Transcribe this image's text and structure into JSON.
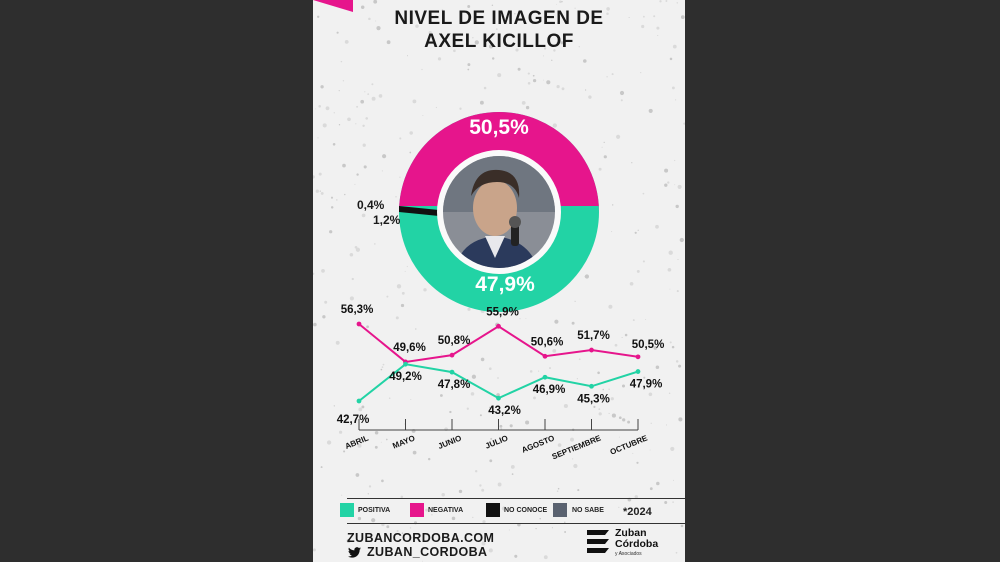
{
  "header": {
    "title_line1": "NIVEL DE IMAGEN DE",
    "title_line2": "AXEL KICILLOF"
  },
  "donut": {
    "negativa_label": "50,5%",
    "positiva_label": "47,9%",
    "no_conoce_label": "0,4%",
    "no_sabe_label": "1,2%"
  },
  "chart_data": {
    "type": "line",
    "title": "NIVEL DE IMAGEN DE AXEL KICILLOF",
    "categories": [
      "ABRIL",
      "MAYO",
      "JUNIO",
      "JULIO",
      "AGOSTO",
      "SEPTIEMBRE",
      "OCTUBRE"
    ],
    "series": [
      {
        "name": "NEGATIVA",
        "color": "#e6158c",
        "values": [
          56.3,
          49.6,
          50.8,
          55.9,
          50.6,
          51.7,
          50.5
        ],
        "labels": [
          "56,3%",
          "49,6%",
          "50,8%",
          "55,9%",
          "50,6%",
          "51,7%",
          "50,5%"
        ]
      },
      {
        "name": "POSITIVA",
        "color": "#22d3a5",
        "values": [
          42.7,
          49.2,
          47.8,
          43.2,
          46.9,
          45.3,
          47.9
        ],
        "labels": [
          "42,7%",
          "49,2%",
          "47,8%",
          "43,2%",
          "46,9%",
          "45,3%",
          "47,9%"
        ]
      }
    ],
    "pie": {
      "type": "pie",
      "slices": [
        {
          "name": "NEGATIVA",
          "value": 50.5,
          "color": "#e6158c"
        },
        {
          "name": "POSITIVA",
          "value": 47.9,
          "color": "#22d3a5"
        },
        {
          "name": "NO SABE",
          "value": 1.2,
          "color": "#5a6270"
        },
        {
          "name": "NO CONOCE",
          "value": 0.4,
          "color": "#111111"
        }
      ]
    },
    "ylim": [
      40,
      60
    ],
    "grid": false
  },
  "legend": {
    "items": [
      {
        "label": "POSITIVA",
        "color": "#22d3a5"
      },
      {
        "label": "NEGATIVA",
        "color": "#e6158c"
      },
      {
        "label": "NO CONOCE",
        "color": "#111111"
      },
      {
        "label": "NO SABE",
        "color": "#5a6270"
      }
    ],
    "year": "*2024"
  },
  "footer": {
    "website": "ZUBANCORDOBA.COM",
    "twitter": "ZUBAN_CORDOBA",
    "brand_line1": "Zuban",
    "brand_line2": "Córdoba",
    "brand_line3": "y Asociados"
  }
}
